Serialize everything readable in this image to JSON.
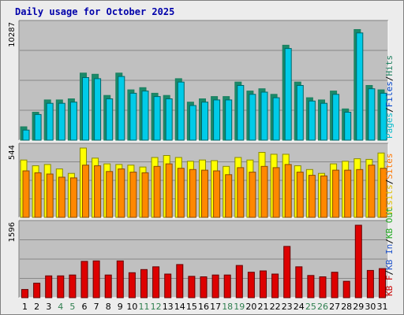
{
  "title": "Daily usage for October 2025",
  "colors": {
    "background": "#ececec",
    "plot": "#c0c0c0",
    "grid": "#888888",
    "frame_light": "#ffffff",
    "frame_dark": "#808080",
    "pages_front": "#00cbe8",
    "pages_back": "#006666",
    "hits_back": "#1d8060",
    "visits_front": "#ffff00",
    "visits_back": "#8a8a00",
    "sites_front": "#ff8800",
    "sites_back": "#8a4a00",
    "kb_front": "#dd0000",
    "kb_back": "#660000",
    "weekday_label": "#000000",
    "weekend_label": "#2f7f4f",
    "label_pages": "#00bbcc",
    "label_files": "#0044cc",
    "label_hits": "#208060",
    "label_visits": "#e0c000",
    "label_sites": "#ff7700",
    "label_kbout": "#22aa22",
    "label_kbin": "#2255cc",
    "label_kbf": "#cc0000",
    "separator": "#000000"
  },
  "chart_data": [
    {
      "type": "bar",
      "panel": "hits_files_pages",
      "ymax_label": "10287",
      "ylim": [
        0,
        10287
      ],
      "categories": [
        "1",
        "2",
        "3",
        "4",
        "5",
        "6",
        "7",
        "8",
        "9",
        "10",
        "11",
        "12",
        "13",
        "14",
        "15",
        "16",
        "17",
        "18",
        "19",
        "20",
        "21",
        "22",
        "23",
        "24",
        "25",
        "26",
        "27",
        "28",
        "29",
        "30",
        "31"
      ],
      "weekend_days": [
        "4",
        "5",
        "11",
        "12",
        "18",
        "19",
        "25",
        "26"
      ],
      "right_label": [
        "Pages",
        "Files",
        "Hits"
      ],
      "series": [
        {
          "name": "Hits",
          "values": [
            1200,
            2500,
            3600,
            3600,
            3700,
            6000,
            5900,
            4000,
            6000,
            4500,
            4700,
            4200,
            4000,
            5500,
            3400,
            3700,
            3900,
            3900,
            5200,
            4400,
            4600,
            4100,
            8500,
            5200,
            3800,
            3600,
            4400,
            2800,
            9900,
            4900,
            4500
          ]
        },
        {
          "name": "Pages",
          "values": [
            900,
            2300,
            3300,
            3300,
            3400,
            5600,
            5500,
            3700,
            5700,
            4200,
            4400,
            3900,
            3700,
            5200,
            3100,
            3400,
            3600,
            3600,
            4900,
            4100,
            4300,
            3800,
            8200,
            4900,
            3500,
            3300,
            4100,
            2500,
            9600,
            4600,
            4200
          ]
        }
      ]
    },
    {
      "type": "bar",
      "panel": "visits_sites",
      "ymax_label": "544",
      "ylim": [
        0,
        544
      ],
      "categories": [
        "1",
        "2",
        "3",
        "4",
        "5",
        "6",
        "7",
        "8",
        "9",
        "10",
        "11",
        "12",
        "13",
        "14",
        "15",
        "16",
        "17",
        "18",
        "19",
        "20",
        "21",
        "22",
        "23",
        "24",
        "25",
        "26",
        "27",
        "28",
        "29",
        "30",
        "31"
      ],
      "right_label": [
        "Visits",
        "Sites"
      ],
      "series": [
        {
          "name": "Visits",
          "values": [
            450,
            405,
            415,
            380,
            345,
            544,
            465,
            420,
            415,
            410,
            395,
            470,
            485,
            470,
            440,
            450,
            445,
            400,
            470,
            450,
            510,
            495,
            495,
            405,
            375,
            345,
            420,
            440,
            460,
            455,
            505
          ]
        },
        {
          "name": "Sites",
          "values": [
            365,
            350,
            340,
            315,
            310,
            410,
            405,
            360,
            380,
            355,
            350,
            400,
            420,
            385,
            375,
            370,
            365,
            335,
            390,
            355,
            400,
            390,
            415,
            355,
            330,
            325,
            370,
            370,
            375,
            410,
            385
          ]
        }
      ]
    },
    {
      "type": "bar",
      "panel": "kb",
      "ymax_label": "1596",
      "ylim": [
        0,
        1596
      ],
      "categories": [
        "1",
        "2",
        "3",
        "4",
        "5",
        "6",
        "7",
        "8",
        "9",
        "10",
        "11",
        "12",
        "13",
        "14",
        "15",
        "16",
        "17",
        "18",
        "19",
        "20",
        "21",
        "22",
        "23",
        "24",
        "25",
        "26",
        "27",
        "28",
        "29",
        "30",
        "31"
      ],
      "right_label": [
        "KB F",
        "KB In",
        "KB Out"
      ],
      "series": [
        {
          "name": "KB F",
          "values": [
            180,
            320,
            480,
            480,
            500,
            800,
            810,
            500,
            810,
            550,
            620,
            680,
            520,
            730,
            470,
            460,
            500,
            500,
            710,
            560,
            590,
            520,
            1130,
            680,
            490,
            460,
            560,
            360,
            1596,
            600,
            640
          ]
        }
      ]
    }
  ],
  "legend_separator": "/"
}
